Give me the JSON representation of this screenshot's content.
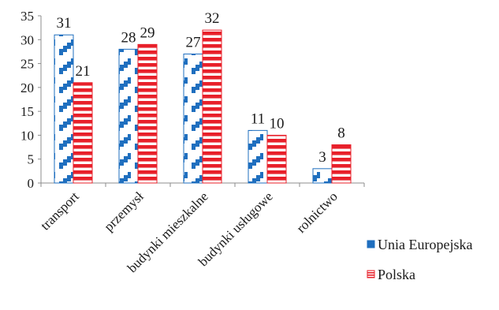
{
  "chart_data": {
    "type": "bar",
    "categories": [
      "transport",
      "przemysł",
      "budynki mieszkalne",
      "budynki usługowe",
      "rolnictwo"
    ],
    "series": [
      {
        "name": "Unia Europejska",
        "values": [
          31,
          28,
          27,
          11,
          3
        ],
        "color": "#1f6fbf",
        "pattern": "blue-steps"
      },
      {
        "name": "Polska",
        "values": [
          21,
          29,
          32,
          10,
          8
        ],
        "color": "#e8202a",
        "pattern": "red-horizontal-stripes"
      }
    ],
    "yticks": [
      "0",
      "5",
      "10",
      "15",
      "20",
      "25",
      "30",
      "35"
    ],
    "ylim": [
      0,
      35
    ],
    "grid": false,
    "legend_position": "bottom-right",
    "data_labels": true
  }
}
